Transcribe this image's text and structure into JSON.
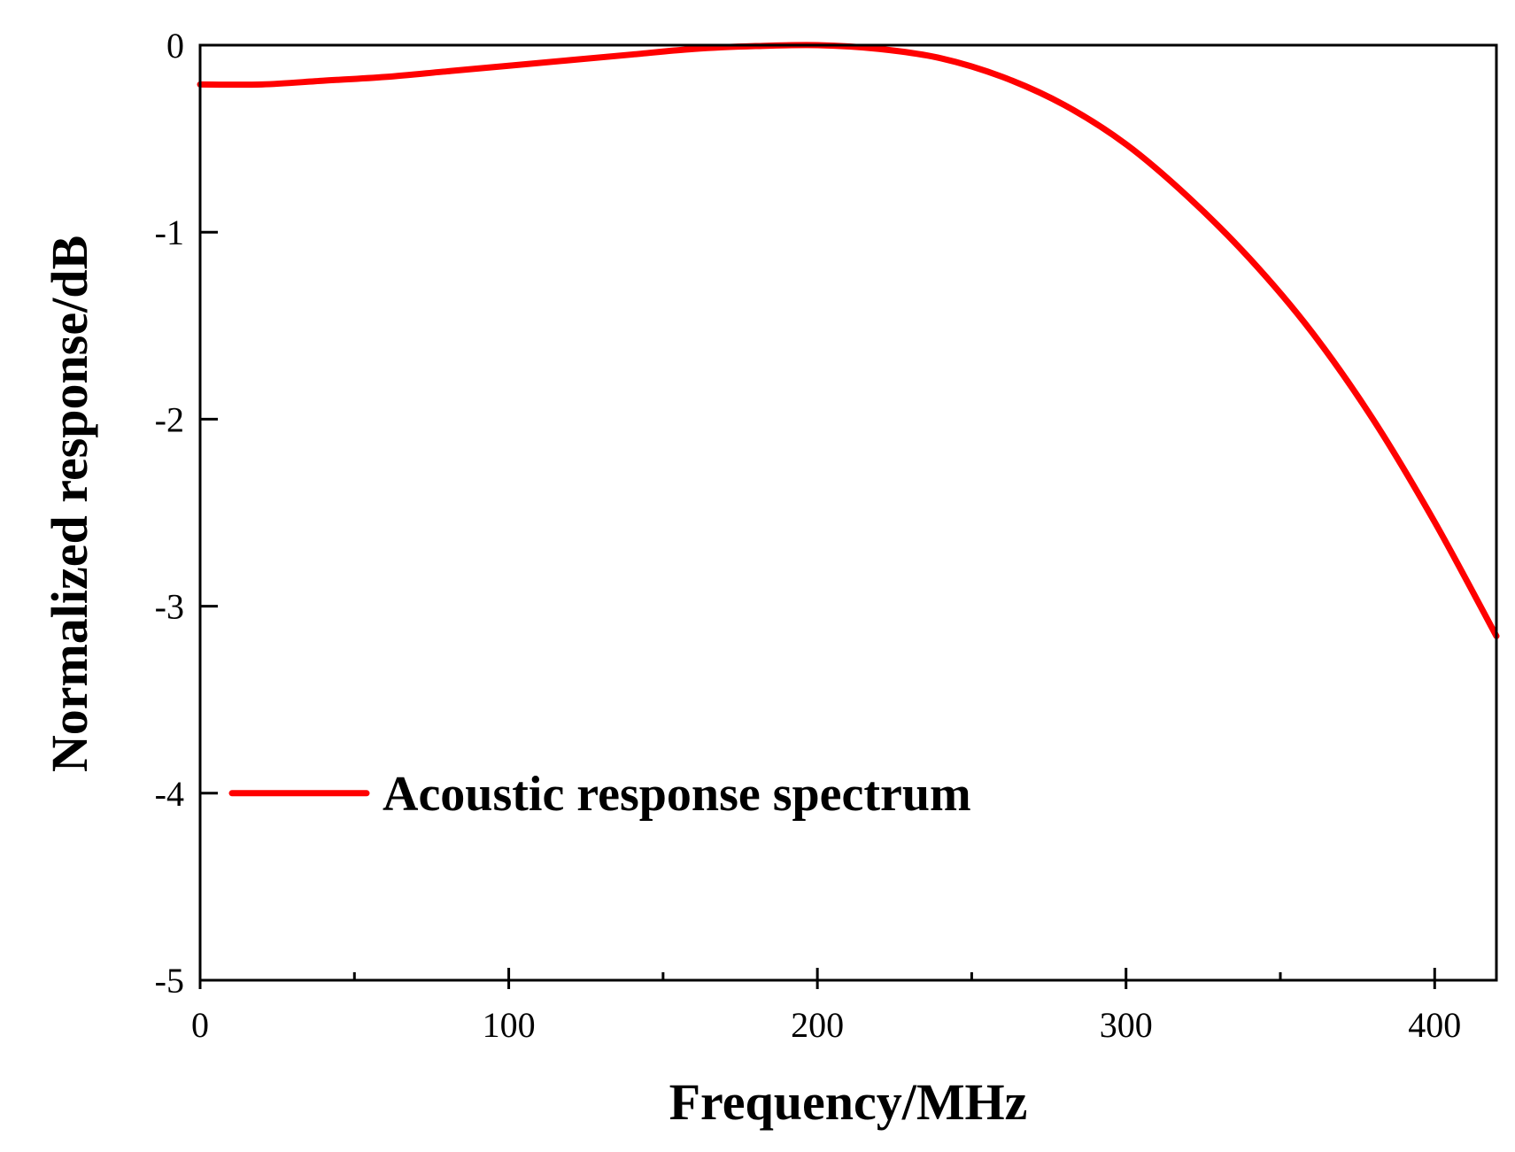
{
  "chart_data": {
    "type": "line",
    "title": "",
    "xlabel": "Frequency/MHz",
    "ylabel": "Normalized response/dB",
    "xlim": [
      0,
      420
    ],
    "ylim": [
      -5,
      0
    ],
    "xticks": [
      0,
      100,
      200,
      300,
      400
    ],
    "xtick_labels": [
      "0",
      "100",
      "200",
      "300",
      "400"
    ],
    "x_minor_ticks": [
      50,
      150,
      250,
      350
    ],
    "yticks": [
      0,
      -1,
      -2,
      -3,
      -4,
      -5
    ],
    "ytick_labels": [
      "0",
      "-1",
      "-2",
      "-3",
      "-4",
      "-5"
    ],
    "grid": false,
    "legend_position": "lower-left",
    "series": [
      {
        "name": "Acoustic response spectrum",
        "color": "#ff0000",
        "x": [
          0,
          20,
          40,
          60,
          80,
          100,
          120,
          140,
          160,
          180,
          200,
          220,
          240,
          260,
          280,
          300,
          320,
          340,
          360,
          380,
          400,
          420
        ],
        "y": [
          -0.21,
          -0.21,
          -0.19,
          -0.17,
          -0.14,
          -0.11,
          -0.08,
          -0.05,
          -0.02,
          -0.005,
          0.0,
          -0.02,
          -0.07,
          -0.17,
          -0.32,
          -0.53,
          -0.81,
          -1.14,
          -1.53,
          -2.0,
          -2.55,
          -3.16
        ]
      }
    ]
  }
}
